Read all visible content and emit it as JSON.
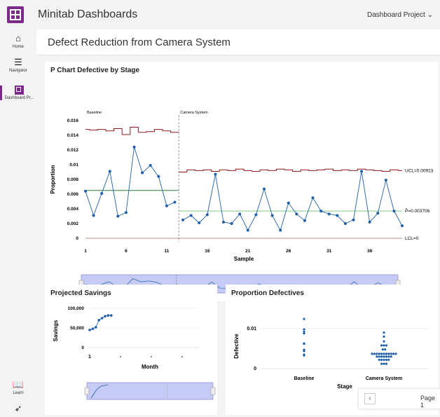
{
  "app": {
    "title": "Minitab Dashboards",
    "project_label": "Dashboard Project",
    "project_chevron": "⌄"
  },
  "nav": [
    {
      "label": "Home",
      "icon": "home-icon"
    },
    {
      "label": "Navigator",
      "icon": "list-icon"
    },
    {
      "label": "Dashboard Pr...",
      "icon": "dashboard-icon"
    },
    {
      "label": "Learn",
      "icon": "book-icon"
    },
    {
      "label": "",
      "icon": "rocket-icon"
    }
  ],
  "page": {
    "title": "Defect Reduction from Camera System"
  },
  "pager": {
    "label": "Page 1",
    "prev": "‹"
  },
  "colors": {
    "accent": "#7b2a8a",
    "point": "#1f5fa8",
    "ucl": "#8b1a1a",
    "center_baseline": "#2e7d32",
    "center_camera": "#81c784",
    "lcl": "#c48b8b",
    "range_fill": "#c5cbf5"
  },
  "chart_data": [
    {
      "type": "line",
      "title": "P Chart Defective by Stage",
      "xlabel": "Sample",
      "ylabel": "Proportion",
      "stages": [
        "Baseline",
        "Camera System"
      ],
      "x_ticks": [
        "1",
        "6",
        "11",
        "16",
        "21",
        "26",
        "31",
        "36"
      ],
      "y_ticks": [
        "0",
        "0.002",
        "0.004",
        "0.006",
        "0.008",
        "0.01",
        "0.012",
        "0.014",
        "0.016"
      ],
      "ylim": [
        0,
        0.016
      ],
      "series": [
        {
          "values": [
            0.0064,
            0.0031,
            0.0061,
            0.0091,
            0.003,
            0.0035,
            0.0124,
            0.0089,
            0.0099,
            0.0084,
            0.0044,
            0.0049,
            0.0025,
            0.0031,
            0.0021,
            0.0032,
            0.0087,
            0.0022,
            0.002,
            0.0033,
            0.0011,
            0.0032,
            0.0067,
            0.0031,
            0.0011,
            0.0048,
            0.0033,
            0.0024,
            0.0055,
            0.0037,
            0.0033,
            0.0031,
            0.002,
            0.0025,
            0.0091,
            0.0022,
            0.0034,
            0.0079,
            0.0037,
            0.0017
          ]
        }
      ],
      "baseline_center": 0.0065,
      "baseline_ucl": [
        0.0148,
        0.0147,
        0.0148,
        0.0146,
        0.0149,
        0.0141,
        0.0151,
        0.0144,
        0.0145,
        0.0148,
        0.0146,
        0.0144
      ],
      "camera_ucl": [
        0.009,
        0.0093,
        0.0092,
        0.0093,
        0.0091,
        0.0093,
        0.0092,
        0.0094,
        0.0092,
        0.0091,
        0.0093,
        0.0092,
        0.0094,
        0.0093,
        0.0091,
        0.0093,
        0.0092,
        0.0093,
        0.0094,
        0.0092,
        0.0093,
        0.0092,
        0.0094,
        0.0093,
        0.0092,
        0.0091,
        0.0093,
        0.0092
      ],
      "center_label": "P̄=0.003706",
      "ucl_label": "UCL=0.00923",
      "lcl_label": "LCL=0"
    },
    {
      "type": "line",
      "title": "Projected Savings",
      "xlabel": "Month",
      "ylabel": "Savings",
      "y_ticks": [
        "0",
        "50,000",
        "100,000"
      ],
      "x_ticks": [
        "1"
      ],
      "ylim": [
        0,
        100000
      ],
      "values": [
        45000,
        48000,
        52000,
        70000,
        75000,
        80000,
        82000,
        82000
      ]
    },
    {
      "type": "scatter",
      "title": "Proportion Defectives",
      "xlabel": "Stage",
      "ylabel": "Defective",
      "categories": [
        "Baseline",
        "Camera System"
      ],
      "y_ticks": [
        "0",
        "0.01"
      ],
      "ylim": [
        0,
        0.014
      ]
    }
  ]
}
